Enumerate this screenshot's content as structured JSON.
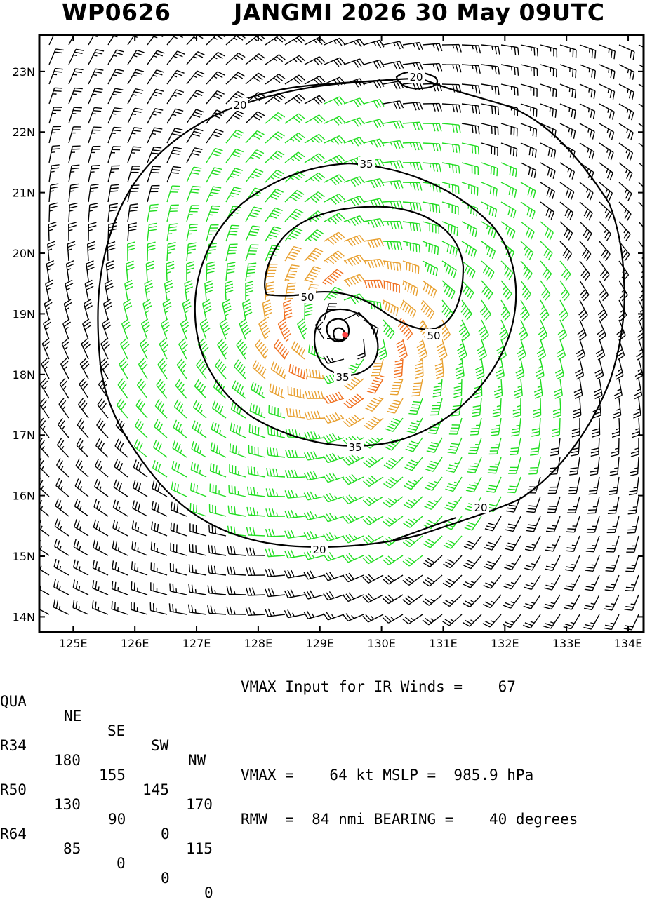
{
  "title": {
    "storm_id": "WP0626",
    "storm_name_time": "JANGMI 2026 30 May 09UTC"
  },
  "map": {
    "lon_range": [
      124.45,
      134.25
    ],
    "lat_range": [
      13.75,
      23.6
    ],
    "lon_ticks": [
      "125E",
      "126E",
      "127E",
      "128E",
      "129E",
      "130E",
      "131E",
      "132E",
      "133E",
      "134E"
    ],
    "lat_ticks": [
      "14N",
      "15N",
      "16N",
      "17N",
      "18N",
      "19N",
      "20N",
      "21N",
      "22N",
      "23N"
    ],
    "storm_center": {
      "lon": 129.42,
      "lat": 18.65
    },
    "wind_colors": {
      "below_34kt": "#000000",
      "34_to_49kt": "#22dd22",
      "50_to_63kt": "#e8a030",
      "64kt_plus": "#f07020",
      "center_marker": "#ff4444"
    },
    "contours": [
      {
        "label": "20"
      },
      {
        "label": "20"
      },
      {
        "label": "20"
      },
      {
        "label": "35"
      },
      {
        "label": "35"
      },
      {
        "label": "35"
      },
      {
        "label": "50"
      },
      {
        "label": "50"
      }
    ]
  },
  "radii_table": {
    "headers": [
      "QUA",
      "NE",
      "SE",
      "SW",
      "NW"
    ],
    "rows": [
      {
        "label": "R34",
        "values": [
          "180",
          "155",
          "145",
          "170"
        ]
      },
      {
        "label": "R50",
        "values": [
          "130",
          "90",
          "0",
          "115"
        ]
      },
      {
        "label": "R64",
        "values": [
          "85",
          "0",
          "0",
          "0"
        ]
      }
    ]
  },
  "info": {
    "line1": "VMAX Input for IR Winds =    67",
    "line2": "VMAX =    64 kt MSLP =  985.9 hPa",
    "line3": "RMW  =  84 nmi BEARING =    40 degrees"
  }
}
